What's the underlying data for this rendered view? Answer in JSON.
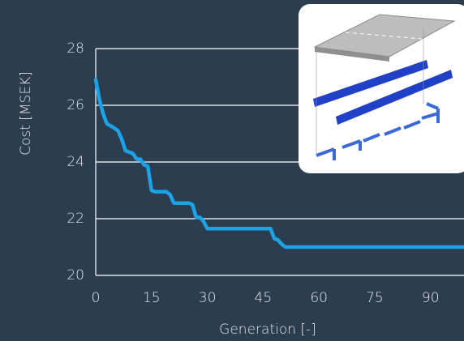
{
  "chart_data": {
    "type": "line",
    "xlabel": "Generation [-]",
    "ylabel": "Cost [MSEK]",
    "x": [
      0,
      1,
      2,
      3,
      5,
      6,
      7,
      8,
      9,
      10,
      11,
      12,
      13,
      14,
      15,
      16,
      19,
      20,
      21,
      25,
      26,
      27,
      28,
      29,
      30,
      47,
      48,
      49,
      50,
      51,
      99
    ],
    "values": [
      26.9,
      26.2,
      25.7,
      25.35,
      25.2,
      25.1,
      24.8,
      24.4,
      24.35,
      24.3,
      24.1,
      24.1,
      23.9,
      23.85,
      23.0,
      22.95,
      22.95,
      22.85,
      22.55,
      22.55,
      22.5,
      22.05,
      22.05,
      21.9,
      21.65,
      21.65,
      21.3,
      21.25,
      21.1,
      21.0,
      21.0
    ],
    "color": "#1aa3e8",
    "xlim": [
      0,
      99
    ],
    "ylim": [
      20,
      28
    ],
    "xticks": [
      0,
      15,
      30,
      45,
      60,
      75,
      90
    ],
    "yticks": [
      20,
      22,
      24,
      26,
      28
    ],
    "grid": true
  }
}
